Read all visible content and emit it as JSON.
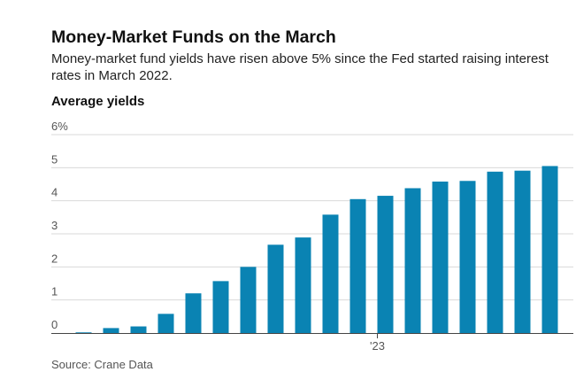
{
  "chart_data": {
    "type": "bar",
    "title": "Money-Market Funds on the March",
    "subtitle": "Money-market fund yields have risen above 5% since the Fed started raising interest rates in March 2022.",
    "ylabel": "Average yields",
    "source": "Source: Crane Data",
    "ylim": [
      0,
      6
    ],
    "yticks": [
      {
        "value": 0,
        "label": "0"
      },
      {
        "value": 1,
        "label": "1"
      },
      {
        "value": 2,
        "label": "2"
      },
      {
        "value": 3,
        "label": "3"
      },
      {
        "value": 4,
        "label": "4"
      },
      {
        "value": 5,
        "label": "5"
      },
      {
        "value": 6,
        "label": "6%"
      }
    ],
    "x_tick": {
      "index": 11,
      "label": "'23"
    },
    "values": [
      0.02,
      0.15,
      0.2,
      0.58,
      1.2,
      1.57,
      2.0,
      2.67,
      2.89,
      3.58,
      4.05,
      4.15,
      4.38,
      4.58,
      4.6,
      4.88,
      4.91,
      5.05
    ],
    "grid": true,
    "colors": {
      "bar": "#0a83b3",
      "grid": "#d9d9d9",
      "axis": "#444444"
    }
  }
}
